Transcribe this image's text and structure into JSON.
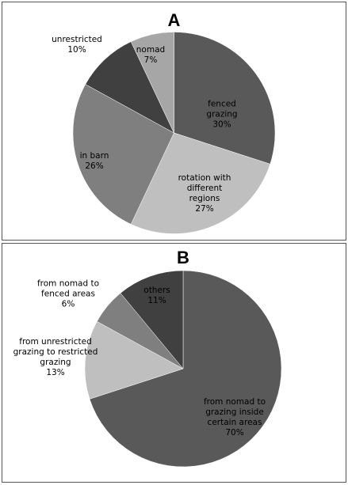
{
  "chart_data": [
    {
      "type": "pie",
      "title": "A",
      "categories": [
        "fenced grazing",
        "rotation with different regions",
        "in barn",
        "unrestricted",
        "nomad"
      ],
      "values": [
        30,
        27,
        26,
        10,
        7
      ],
      "value_labels": [
        "30%",
        "27%",
        "26%",
        "10%",
        "7%"
      ],
      "colors": [
        "#595959",
        "#bfbfbf",
        "#7f7f7f",
        "#404040",
        "#a6a6a6"
      ]
    },
    {
      "type": "pie",
      "title": "B",
      "categories": [
        "from nomad to grazing inside certain areas",
        "from unrestricted grazing to restricted grazing",
        "from nomad to fenced areas",
        "others"
      ],
      "values": [
        70,
        13,
        6,
        11
      ],
      "value_labels": [
        "70%",
        "13%",
        "6%",
        "11%"
      ],
      "colors": [
        "#595959",
        "#bfbfbf",
        "#7f7f7f",
        "#404040"
      ]
    }
  ]
}
